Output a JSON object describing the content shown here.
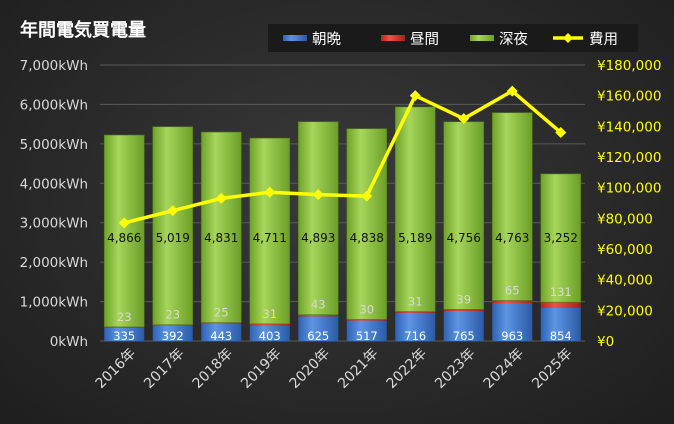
{
  "chart_data": {
    "type": "bar",
    "stacked": true,
    "title": "年間電気買電量",
    "categories": [
      "2016年",
      "2017年",
      "2018年",
      "2019年",
      "2020年",
      "2021年",
      "2022年",
      "2023年",
      "2024年",
      "2025年"
    ],
    "series": [
      {
        "name": "朝晩",
        "color": "#4a7fcf",
        "values": [
          335,
          392,
          443,
          403,
          625,
          517,
          716,
          765,
          963,
          854
        ]
      },
      {
        "name": "昼間",
        "color": "#e0362f",
        "values": [
          23,
          23,
          25,
          31,
          43,
          30,
          31,
          39,
          65,
          131
        ]
      },
      {
        "name": "深夜",
        "color": "#8dc63f",
        "values": [
          4866,
          5019,
          4831,
          4711,
          4893,
          4838,
          5189,
          4756,
          4763,
          3252
        ]
      }
    ],
    "line": {
      "name": "費用",
      "color": "#ffff00",
      "values": [
        77000,
        85000,
        93000,
        97000,
        95500,
        94500,
        160000,
        145000,
        163000,
        136000
      ]
    },
    "ylim": [
      0,
      7000
    ],
    "y2lim": [
      0,
      180000
    ],
    "yticks": [
      "0kWh",
      "1,000kWh",
      "2,000kWh",
      "3,000kWh",
      "4,000kWh",
      "5,000kWh",
      "6,000kWh",
      "7,000kWh"
    ],
    "y2ticks": [
      "¥0",
      "¥20,000",
      "¥40,000",
      "¥60,000",
      "¥80,000",
      "¥100,000",
      "¥120,000",
      "¥140,000",
      "¥160,000",
      "¥180,000"
    ],
    "legend_position": "top-right",
    "grid": true
  }
}
